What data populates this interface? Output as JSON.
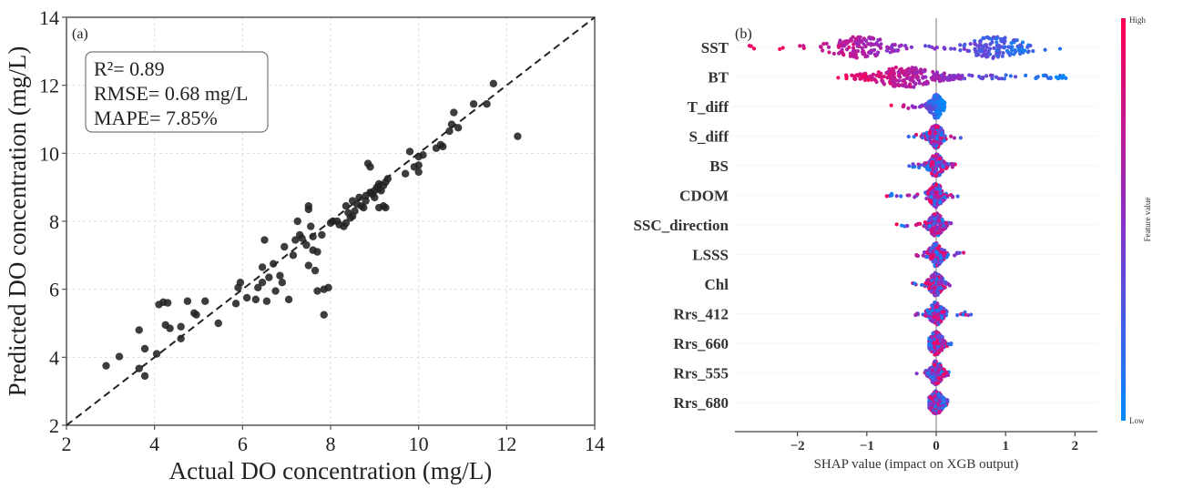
{
  "chart_data": [
    {
      "type": "scatter",
      "panel_label": "(a)",
      "xlabel": "Actual DO concentration (mg/L)",
      "ylabel": "Predicted DO concentration (mg/L)",
      "xlim": [
        2,
        14
      ],
      "ylim": [
        2,
        14
      ],
      "xticks": [
        "2",
        "4",
        "6",
        "8",
        "10",
        "12",
        "14"
      ],
      "yticks": [
        "2",
        "4",
        "6",
        "8",
        "10",
        "12",
        "14"
      ],
      "grid": true,
      "reference_line": "1:1 dashed",
      "annotation": [
        "R²= 0.89",
        "RMSE= 0.68 mg/L",
        "MAPE= 7.85%"
      ],
      "points": [
        [
          2.9,
          3.75
        ],
        [
          3.2,
          4.02
        ],
        [
          3.65,
          3.67
        ],
        [
          3.78,
          3.45
        ],
        [
          3.65,
          4.8
        ],
        [
          3.78,
          4.25
        ],
        [
          4.05,
          4.1
        ],
        [
          4.1,
          5.55
        ],
        [
          4.2,
          5.62
        ],
        [
          4.3,
          5.6
        ],
        [
          4.25,
          4.95
        ],
        [
          4.35,
          4.85
        ],
        [
          4.6,
          4.9
        ],
        [
          4.6,
          4.55
        ],
        [
          4.75,
          5.65
        ],
        [
          4.9,
          5.3
        ],
        [
          4.95,
          5.25
        ],
        [
          5.15,
          5.65
        ],
        [
          5.45,
          5.0
        ],
        [
          5.85,
          5.58
        ],
        [
          5.9,
          6.05
        ],
        [
          5.95,
          6.2
        ],
        [
          6.1,
          5.75
        ],
        [
          6.3,
          5.7
        ],
        [
          6.35,
          6.05
        ],
        [
          6.45,
          6.2
        ],
        [
          6.45,
          6.65
        ],
        [
          6.5,
          7.45
        ],
        [
          6.55,
          5.65
        ],
        [
          6.6,
          6.35
        ],
        [
          6.7,
          6.75
        ],
        [
          6.75,
          5.95
        ],
        [
          6.85,
          6.4
        ],
        [
          6.9,
          6.2
        ],
        [
          6.95,
          7.25
        ],
        [
          7.05,
          5.7
        ],
        [
          7.15,
          7.0
        ],
        [
          7.2,
          7.45
        ],
        [
          7.25,
          8.0
        ],
        [
          7.3,
          7.6
        ],
        [
          7.35,
          7.5
        ],
        [
          7.45,
          7.3
        ],
        [
          7.5,
          8.35
        ],
        [
          7.5,
          8.45
        ],
        [
          7.5,
          6.7
        ],
        [
          7.55,
          7.85
        ],
        [
          7.6,
          7.55
        ],
        [
          7.6,
          7.15
        ],
        [
          7.65,
          6.55
        ],
        [
          7.7,
          7.1
        ],
        [
          7.7,
          5.95
        ],
        [
          7.8,
          7.6
        ],
        [
          7.85,
          6.0
        ],
        [
          7.85,
          5.25
        ],
        [
          7.95,
          6.05
        ],
        [
          8.0,
          7.95
        ],
        [
          8.05,
          8.0
        ],
        [
          8.15,
          8.0
        ],
        [
          8.2,
          7.9
        ],
        [
          8.3,
          7.85
        ],
        [
          8.35,
          8.45
        ],
        [
          8.35,
          7.95
        ],
        [
          8.4,
          8.25
        ],
        [
          8.45,
          8.1
        ],
        [
          8.5,
          8.6
        ],
        [
          8.5,
          8.15
        ],
        [
          8.55,
          8.3
        ],
        [
          8.6,
          8.5
        ],
        [
          8.65,
          8.7
        ],
        [
          8.7,
          8.45
        ],
        [
          8.75,
          8.4
        ],
        [
          8.8,
          8.75
        ],
        [
          8.8,
          8.6
        ],
        [
          8.85,
          9.7
        ],
        [
          8.9,
          9.6
        ],
        [
          8.9,
          8.85
        ],
        [
          8.95,
          8.8
        ],
        [
          9.0,
          8.9
        ],
        [
          9.0,
          8.7
        ],
        [
          9.05,
          9.0
        ],
        [
          9.1,
          8.95
        ],
        [
          9.1,
          9.1
        ],
        [
          9.15,
          8.9
        ],
        [
          9.2,
          9.05
        ],
        [
          9.25,
          8.4
        ],
        [
          9.3,
          9.25
        ],
        [
          9.25,
          9.15
        ],
        [
          9.2,
          8.45
        ],
        [
          9.1,
          8.4
        ],
        [
          9.7,
          9.4
        ],
        [
          9.8,
          10.05
        ],
        [
          9.9,
          9.6
        ],
        [
          10.0,
          9.9
        ],
        [
          10.0,
          9.65
        ],
        [
          10.0,
          9.45
        ],
        [
          10.1,
          9.95
        ],
        [
          10.4,
          10.15
        ],
        [
          10.5,
          10.25
        ],
        [
          10.55,
          10.2
        ],
        [
          10.7,
          10.65
        ],
        [
          10.75,
          10.85
        ],
        [
          10.8,
          11.2
        ],
        [
          10.9,
          10.75
        ],
        [
          11.25,
          11.45
        ],
        [
          11.55,
          11.45
        ],
        [
          11.7,
          12.05
        ],
        [
          12.25,
          10.5
        ]
      ]
    },
    {
      "type": "beeswarm",
      "panel_label": "(b)",
      "xlabel": "SHAP value (impact on XGB output)",
      "xlim": [
        -2.9,
        2.35
      ],
      "xticks": [
        "−2",
        "−1",
        "0",
        "1",
        "2"
      ],
      "xtick_values": [
        -2,
        -1,
        0,
        1,
        2
      ],
      "colorbar": {
        "label": "Feature value",
        "high_label": "High",
        "low_label": "Low",
        "high_color": "#ff0052",
        "low_color": "#008bfb",
        "mid_color": "#7b3fe0"
      },
      "features": [
        {
          "name": "SST",
          "min": -2.75,
          "max": 2.1
        },
        {
          "name": "BT",
          "min": -1.45,
          "max": 1.9
        },
        {
          "name": "T_diff",
          "min": -0.65,
          "max": 0.12
        },
        {
          "name": "S_diff",
          "min": -0.4,
          "max": 0.4
        },
        {
          "name": "BS",
          "min": -0.4,
          "max": 0.3
        },
        {
          "name": "CDOM",
          "min": -0.8,
          "max": 0.4
        },
        {
          "name": "SSC_direction",
          "min": -0.6,
          "max": 0.3
        },
        {
          "name": "LSSS",
          "min": -0.3,
          "max": 0.4
        },
        {
          "name": "Chl",
          "min": -0.4,
          "max": 0.25
        },
        {
          "name": "Rrs_412",
          "min": -0.3,
          "max": 0.55
        },
        {
          "name": "Rrs_660",
          "min": -0.1,
          "max": 0.22
        },
        {
          "name": "Rrs_555",
          "min": -0.3,
          "max": 0.18
        },
        {
          "name": "Rrs_680",
          "min": -0.1,
          "max": 0.18
        }
      ]
    }
  ]
}
